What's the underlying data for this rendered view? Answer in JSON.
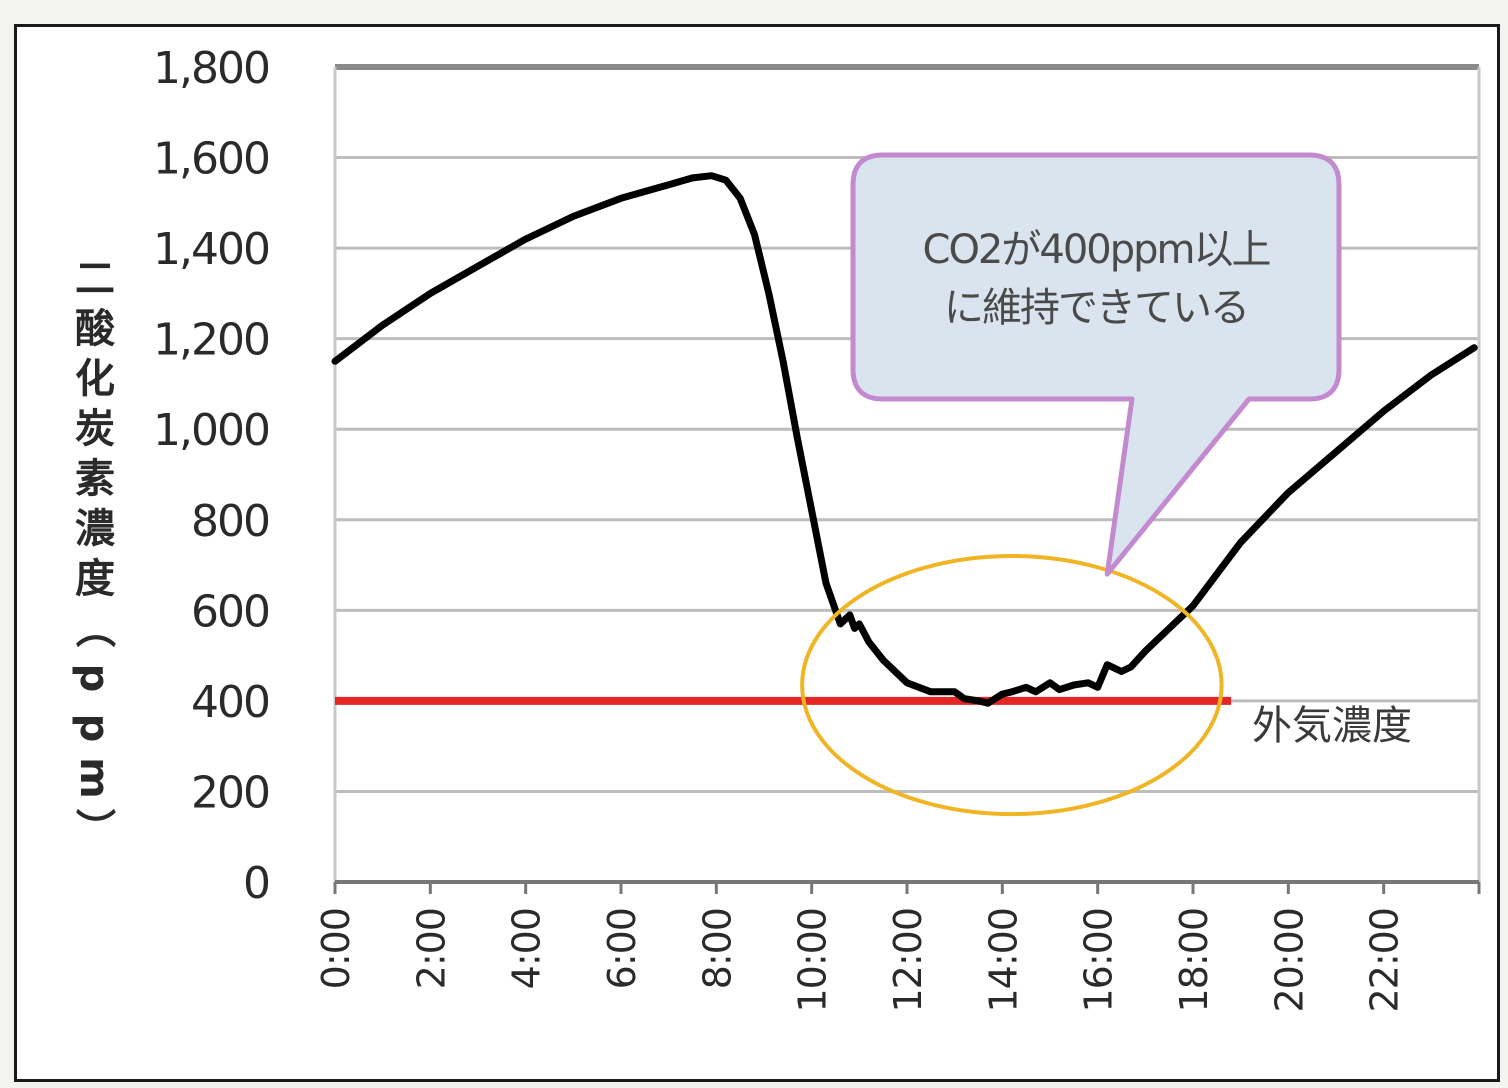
{
  "chart_data": {
    "type": "line",
    "ylabel": "二酸化炭素濃度（ppm）",
    "ylim": [
      0,
      1800
    ],
    "yticks": [
      "0",
      "200",
      "400",
      "600",
      "800",
      "1,000",
      "1,200",
      "1,400",
      "1,600",
      "1,800"
    ],
    "xlim": [
      0,
      24
    ],
    "xticks": [
      "0:00",
      "2:00",
      "4:00",
      "6:00",
      "8:00",
      "10:00",
      "12:00",
      "14:00",
      "16:00",
      "18:00",
      "20:00",
      "22:00"
    ],
    "grid": true,
    "series": [
      {
        "color": "#000000",
        "x": [
          0,
          1,
          2,
          3,
          4,
          5,
          6,
          6.5,
          7,
          7.5,
          7.9,
          8.2,
          8.5,
          8.8,
          9.1,
          9.4,
          9.7,
          10.0,
          10.3,
          10.6,
          10.8,
          10.9,
          11.0,
          11.2,
          11.5,
          12.0,
          12.5,
          13.0,
          13.2,
          13.5,
          13.7,
          14.0,
          14.2,
          14.5,
          14.7,
          15.0,
          15.2,
          15.5,
          15.8,
          16.0,
          16.2,
          16.5,
          16.7,
          17.0,
          17.3,
          17.6,
          18.0,
          18.5,
          19.0,
          20.0,
          21.0,
          22.0,
          23.0,
          23.9
        ],
        "y": [
          1150,
          1230,
          1300,
          1360,
          1420,
          1470,
          1510,
          1525,
          1540,
          1555,
          1560,
          1550,
          1510,
          1430,
          1300,
          1150,
          980,
          820,
          660,
          570,
          590,
          560,
          570,
          530,
          490,
          440,
          420,
          420,
          405,
          400,
          395,
          415,
          420,
          430,
          420,
          440,
          425,
          435,
          440,
          430,
          480,
          465,
          475,
          510,
          540,
          570,
          610,
          680,
          750,
          860,
          950,
          1040,
          1120,
          1180
        ]
      }
    ],
    "reference_line": {
      "y": 400,
      "x_end": 18.8,
      "color": "#e32626",
      "label": "外気濃度"
    },
    "highlight_ellipse": {
      "cx": 14.2,
      "cy": 435,
      "rx": 4.4,
      "ry": 285,
      "color": "#f0b524"
    },
    "callout": {
      "lines": [
        "CO2が400ppm以上",
        "に維持できている"
      ],
      "fill": "#d9e4ee",
      "border": "#c38ad0",
      "pointer_x": 16.2,
      "pointer_y": 680
    }
  }
}
